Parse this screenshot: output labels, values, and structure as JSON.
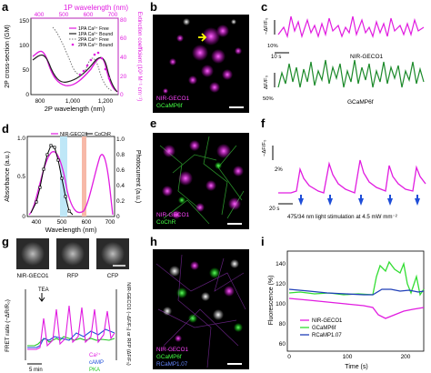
{
  "panels": {
    "a": {
      "letter": "a",
      "top_axis_label": "1P wavelength (nm)",
      "top_ticks": [
        "400",
        "500",
        "600",
        "700"
      ],
      "bottom_axis_label": "2P wavelength (nm)",
      "bottom_ticks": [
        "800",
        "1,000",
        "1,200"
      ],
      "left_axis_label": "2P cross-section (GM)",
      "left_ticks": [
        "0",
        "50",
        "100",
        "150"
      ],
      "right_axis_label": "Extinction coefficient (10³ M⁻¹ cm⁻¹)",
      "right_ticks": [
        "0",
        "20",
        "40",
        "60",
        "80"
      ],
      "legend": [
        "1PA Ca²⁺ Free",
        "1PA Ca²⁺ Bound",
        "2PA Ca²⁺ Free",
        "2PA Ca²⁺ Bound"
      ],
      "colors": {
        "magenta": "#e11ce0",
        "gray": "#777777",
        "dark": "#222222"
      }
    },
    "b": {
      "letter": "b",
      "label1": "NIR-GECO1",
      "label2": "GCaMP6f"
    },
    "c": {
      "letter": "c",
      "yl1": "−ΔF/F₀",
      "yl2": "ΔF/F₀",
      "scale1": "10%",
      "scale2": "50%",
      "time": "10 s",
      "trace1": "NIR-GECO1",
      "trace2": "GCaMP6f"
    },
    "d": {
      "letter": "d",
      "legend": [
        "NIR-GECO1",
        "CoChR"
      ],
      "x_axis_label": "Wavelength (nm)",
      "x_ticks": [
        "400",
        "500",
        "600",
        "700"
      ],
      "left_axis_label": "Absorbance (a.u.)",
      "right_axis_label": "Photocurrent (a.u.)",
      "left_ticks": [
        "0",
        "0.5",
        "1.0"
      ],
      "right_ticks": [
        "0",
        "0.2",
        "0.4",
        "0.6",
        "0.8",
        "1.0"
      ]
    },
    "e": {
      "letter": "e",
      "label1": "NIR-GECO1",
      "label2": "CoChR"
    },
    "f": {
      "letter": "f",
      "ylabel": "−ΔF/F₀",
      "scale_y": "2%",
      "scale_t": "20 s",
      "caption": "475/34 nm light stimulation at 4.5 mW mm⁻²"
    },
    "g": {
      "letter": "g",
      "thumbs": [
        "NIR-GECO1",
        "RFP",
        "CFP"
      ],
      "tea": "TEA",
      "left_axis_label": "FRET ratio (−ΔR/R₀)",
      "right_axis_label": "NIR-GECO1 (−ΔF/F₀) or RFP (ΔF/F₀)",
      "legend": [
        "Ca²⁺",
        "cAMP",
        "PKA"
      ],
      "time": "5 min"
    },
    "h": {
      "letter": "h",
      "label1": "NIR-GECO1",
      "label2": "GCaMP6f",
      "label3": "RCaMP1.07"
    },
    "i": {
      "letter": "i",
      "ylabel": "Fluorescence (%)",
      "xlabel": "Time (s)",
      "y_ticks": [
        "60",
        "80",
        "100",
        "120",
        "140"
      ],
      "x_ticks": [
        "0",
        "100",
        "200"
      ],
      "legend": [
        "NIR-GECO1",
        "GCaMP6f",
        "RCaMP1.07"
      ]
    }
  }
}
